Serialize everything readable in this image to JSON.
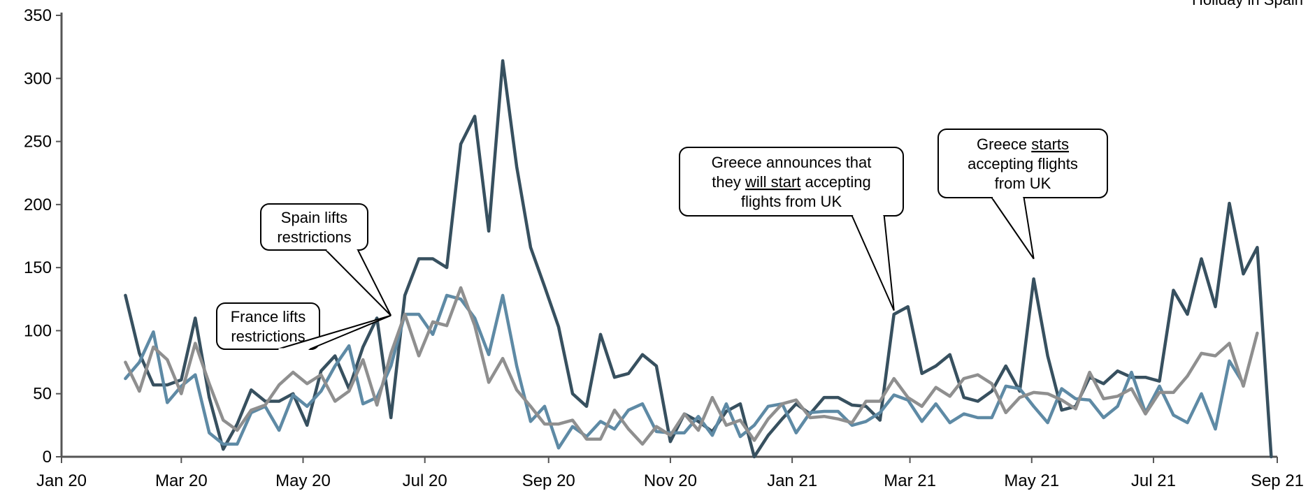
{
  "chart_data": {
    "type": "line",
    "title": "",
    "xlabel": "",
    "ylabel": "",
    "ylim": [
      0,
      350
    ],
    "y_ticks": [
      0,
      50,
      100,
      150,
      200,
      250,
      300,
      350
    ],
    "x_range": [
      "2020-01-01",
      "2021-09-01"
    ],
    "x_ticks": [
      {
        "date": "2020-01-01",
        "label": "Jan 20"
      },
      {
        "date": "2020-03-01",
        "label": "Mar 20"
      },
      {
        "date": "2020-05-01",
        "label": "May 20"
      },
      {
        "date": "2020-07-01",
        "label": "Jul 20"
      },
      {
        "date": "2020-09-01",
        "label": "Sep 20"
      },
      {
        "date": "2020-11-01",
        "label": "Nov 20"
      },
      {
        "date": "2021-01-01",
        "label": "Jan 21"
      },
      {
        "date": "2021-03-01",
        "label": "Mar 21"
      },
      {
        "date": "2021-05-01",
        "label": "May 21"
      },
      {
        "date": "2021-07-01",
        "label": "Jul 21"
      },
      {
        "date": "2021-09-01",
        "label": "Sep 21"
      }
    ],
    "grid": false,
    "legend_position": "top-right",
    "series": [
      {
        "name": "",
        "color": "#37505f",
        "points": [
          [
            "2020-02-02",
            128
          ],
          [
            "2020-02-09",
            82
          ],
          [
            "2020-02-16",
            57
          ],
          [
            "2020-02-23",
            57
          ],
          [
            "2020-03-01",
            61
          ],
          [
            "2020-03-08",
            110
          ],
          [
            "2020-03-15",
            47
          ],
          [
            "2020-03-22",
            6
          ],
          [
            "2020-03-29",
            26
          ],
          [
            "2020-04-05",
            53
          ],
          [
            "2020-04-12",
            44
          ],
          [
            "2020-04-19",
            44
          ],
          [
            "2020-04-26",
            50
          ],
          [
            "2020-05-03",
            25
          ],
          [
            "2020-05-10",
            68
          ],
          [
            "2020-05-17",
            80
          ],
          [
            "2020-05-24",
            54
          ],
          [
            "2020-05-31",
            87
          ],
          [
            "2020-06-07",
            110
          ],
          [
            "2020-06-14",
            31
          ],
          [
            "2020-06-21",
            128
          ],
          [
            "2020-06-28",
            157
          ],
          [
            "2020-07-05",
            157
          ],
          [
            "2020-07-12",
            150
          ],
          [
            "2020-07-19",
            248
          ],
          [
            "2020-07-26",
            270
          ],
          [
            "2020-08-02",
            179
          ],
          [
            "2020-08-09",
            314
          ],
          [
            "2020-08-16",
            230
          ],
          [
            "2020-08-23",
            166
          ],
          [
            "2020-08-30",
            135
          ],
          [
            "2020-09-06",
            103
          ],
          [
            "2020-09-13",
            50
          ],
          [
            "2020-09-20",
            40
          ],
          [
            "2020-09-27",
            97
          ],
          [
            "2020-10-04",
            63
          ],
          [
            "2020-10-11",
            66
          ],
          [
            "2020-10-18",
            81
          ],
          [
            "2020-10-25",
            72
          ],
          [
            "2020-11-01",
            12
          ],
          [
            "2020-11-08",
            34
          ],
          [
            "2020-11-15",
            28
          ],
          [
            "2020-11-22",
            20
          ],
          [
            "2020-11-29",
            36
          ],
          [
            "2020-12-06",
            42
          ],
          [
            "2020-12-13",
            0
          ],
          [
            "2020-12-20",
            17
          ],
          [
            "2020-12-27",
            30
          ],
          [
            "2021-01-03",
            42
          ],
          [
            "2021-01-10",
            34
          ],
          [
            "2021-01-17",
            47
          ],
          [
            "2021-01-24",
            47
          ],
          [
            "2021-01-31",
            41
          ],
          [
            "2021-02-07",
            40
          ],
          [
            "2021-02-14",
            29
          ],
          [
            "2021-02-21",
            113
          ],
          [
            "2021-02-28",
            119
          ],
          [
            "2021-03-07",
            66
          ],
          [
            "2021-03-14",
            72
          ],
          [
            "2021-03-21",
            81
          ],
          [
            "2021-03-28",
            47
          ],
          [
            "2021-04-04",
            44
          ],
          [
            "2021-04-11",
            52
          ],
          [
            "2021-04-18",
            72
          ],
          [
            "2021-04-25",
            52
          ],
          [
            "2021-05-02",
            141
          ],
          [
            "2021-05-09",
            80
          ],
          [
            "2021-05-16",
            37
          ],
          [
            "2021-05-23",
            40
          ],
          [
            "2021-05-30",
            63
          ],
          [
            "2021-06-06",
            58
          ],
          [
            "2021-06-13",
            68
          ],
          [
            "2021-06-20",
            63
          ],
          [
            "2021-06-27",
            63
          ],
          [
            "2021-07-04",
            60
          ],
          [
            "2021-07-11",
            132
          ],
          [
            "2021-07-18",
            113
          ],
          [
            "2021-07-25",
            157
          ],
          [
            "2021-08-01",
            119
          ],
          [
            "2021-08-08",
            201
          ],
          [
            "2021-08-15",
            145
          ],
          [
            "2021-08-22",
            166
          ],
          [
            "2021-08-29",
            0
          ]
        ]
      },
      {
        "name": "",
        "color": "#5e8aa5",
        "points": [
          [
            "2020-02-02",
            62
          ],
          [
            "2020-02-09",
            75
          ],
          [
            "2020-02-16",
            99
          ],
          [
            "2020-02-23",
            43
          ],
          [
            "2020-03-01",
            56
          ],
          [
            "2020-03-08",
            65
          ],
          [
            "2020-03-15",
            19
          ],
          [
            "2020-03-22",
            10
          ],
          [
            "2020-03-29",
            10
          ],
          [
            "2020-04-05",
            35
          ],
          [
            "2020-04-12",
            40
          ],
          [
            "2020-04-19",
            21
          ],
          [
            "2020-04-26",
            49
          ],
          [
            "2020-05-03",
            40
          ],
          [
            "2020-05-10",
            52
          ],
          [
            "2020-05-17",
            72
          ],
          [
            "2020-05-24",
            88
          ],
          [
            "2020-05-31",
            42
          ],
          [
            "2020-06-07",
            47
          ],
          [
            "2020-06-14",
            72
          ],
          [
            "2020-06-21",
            113
          ],
          [
            "2020-06-28",
            113
          ],
          [
            "2020-07-05",
            97
          ],
          [
            "2020-07-12",
            128
          ],
          [
            "2020-07-19",
            125
          ],
          [
            "2020-07-26",
            110
          ],
          [
            "2020-08-02",
            81
          ],
          [
            "2020-08-09",
            128
          ],
          [
            "2020-08-16",
            72
          ],
          [
            "2020-08-23",
            28
          ],
          [
            "2020-08-30",
            40
          ],
          [
            "2020-09-06",
            7
          ],
          [
            "2020-09-13",
            24
          ],
          [
            "2020-09-20",
            16
          ],
          [
            "2020-09-27",
            28
          ],
          [
            "2020-10-04",
            22
          ],
          [
            "2020-10-11",
            37
          ],
          [
            "2020-10-18",
            42
          ],
          [
            "2020-10-25",
            20
          ],
          [
            "2020-11-01",
            19
          ],
          [
            "2020-11-08",
            19
          ],
          [
            "2020-11-15",
            32
          ],
          [
            "2020-11-22",
            17
          ],
          [
            "2020-11-29",
            42
          ],
          [
            "2020-12-06",
            16
          ],
          [
            "2020-12-13",
            25
          ],
          [
            "2020-12-20",
            40
          ],
          [
            "2020-12-27",
            42
          ],
          [
            "2021-01-03",
            19
          ],
          [
            "2021-01-10",
            35
          ],
          [
            "2021-01-17",
            36
          ],
          [
            "2021-01-24",
            36
          ],
          [
            "2021-01-31",
            25
          ],
          [
            "2021-02-07",
            28
          ],
          [
            "2021-02-14",
            35
          ],
          [
            "2021-02-21",
            49
          ],
          [
            "2021-02-28",
            45
          ],
          [
            "2021-03-07",
            28
          ],
          [
            "2021-03-14",
            42
          ],
          [
            "2021-03-21",
            27
          ],
          [
            "2021-03-28",
            34
          ],
          [
            "2021-04-04",
            31
          ],
          [
            "2021-04-11",
            31
          ],
          [
            "2021-04-18",
            56
          ],
          [
            "2021-04-25",
            54
          ],
          [
            "2021-05-02",
            40
          ],
          [
            "2021-05-09",
            27
          ],
          [
            "2021-05-16",
            54
          ],
          [
            "2021-05-23",
            46
          ],
          [
            "2021-05-30",
            45
          ],
          [
            "2021-06-06",
            31
          ],
          [
            "2021-06-13",
            40
          ],
          [
            "2021-06-20",
            67
          ],
          [
            "2021-06-27",
            35
          ],
          [
            "2021-07-04",
            56
          ],
          [
            "2021-07-11",
            33
          ],
          [
            "2021-07-18",
            27
          ],
          [
            "2021-07-25",
            50
          ],
          [
            "2021-08-01",
            22
          ],
          [
            "2021-08-08",
            76
          ],
          [
            "2021-08-15",
            58
          ]
        ]
      },
      {
        "name": "Holiday in Spain",
        "color": "#8f8f8f",
        "points": [
          [
            "2020-02-02",
            75
          ],
          [
            "2020-02-09",
            52
          ],
          [
            "2020-02-16",
            87
          ],
          [
            "2020-02-23",
            77
          ],
          [
            "2020-03-01",
            50
          ],
          [
            "2020-03-08",
            90
          ],
          [
            "2020-03-15",
            58
          ],
          [
            "2020-03-22",
            29
          ],
          [
            "2020-03-29",
            21
          ],
          [
            "2020-04-05",
            37
          ],
          [
            "2020-04-12",
            41
          ],
          [
            "2020-04-19",
            57
          ],
          [
            "2020-04-26",
            67
          ],
          [
            "2020-05-03",
            58
          ],
          [
            "2020-05-10",
            65
          ],
          [
            "2020-05-17",
            44
          ],
          [
            "2020-05-24",
            52
          ],
          [
            "2020-05-31",
            77
          ],
          [
            "2020-06-07",
            41
          ],
          [
            "2020-06-14",
            82
          ],
          [
            "2020-06-21",
            113
          ],
          [
            "2020-06-28",
            80
          ],
          [
            "2020-07-05",
            107
          ],
          [
            "2020-07-12",
            104
          ],
          [
            "2020-07-19",
            134
          ],
          [
            "2020-07-26",
            104
          ],
          [
            "2020-08-02",
            59
          ],
          [
            "2020-08-09",
            78
          ],
          [
            "2020-08-16",
            53
          ],
          [
            "2020-08-23",
            40
          ],
          [
            "2020-08-30",
            26
          ],
          [
            "2020-09-06",
            26
          ],
          [
            "2020-09-13",
            29
          ],
          [
            "2020-09-20",
            14
          ],
          [
            "2020-09-27",
            14
          ],
          [
            "2020-10-04",
            37
          ],
          [
            "2020-10-11",
            22
          ],
          [
            "2020-10-18",
            10
          ],
          [
            "2020-10-25",
            24
          ],
          [
            "2020-11-01",
            17
          ],
          [
            "2020-11-08",
            34
          ],
          [
            "2020-11-15",
            21
          ],
          [
            "2020-11-22",
            47
          ],
          [
            "2020-11-29",
            25
          ],
          [
            "2020-12-06",
            29
          ],
          [
            "2020-12-13",
            13
          ],
          [
            "2020-12-20",
            30
          ],
          [
            "2020-12-27",
            42
          ],
          [
            "2021-01-03",
            45
          ],
          [
            "2021-01-10",
            31
          ],
          [
            "2021-01-17",
            32
          ],
          [
            "2021-01-24",
            30
          ],
          [
            "2021-01-31",
            27
          ],
          [
            "2021-02-07",
            44
          ],
          [
            "2021-02-14",
            44
          ],
          [
            "2021-02-21",
            62
          ],
          [
            "2021-02-28",
            47
          ],
          [
            "2021-03-07",
            40
          ],
          [
            "2021-03-14",
            55
          ],
          [
            "2021-03-21",
            48
          ],
          [
            "2021-03-28",
            62
          ],
          [
            "2021-04-04",
            65
          ],
          [
            "2021-04-11",
            58
          ],
          [
            "2021-04-18",
            35
          ],
          [
            "2021-04-25",
            47
          ],
          [
            "2021-05-02",
            51
          ],
          [
            "2021-05-09",
            50
          ],
          [
            "2021-05-16",
            45
          ],
          [
            "2021-05-23",
            38
          ],
          [
            "2021-05-30",
            67
          ],
          [
            "2021-06-06",
            46
          ],
          [
            "2021-06-13",
            48
          ],
          [
            "2021-06-20",
            54
          ],
          [
            "2021-06-27",
            34
          ],
          [
            "2021-07-04",
            51
          ],
          [
            "2021-07-11",
            51
          ],
          [
            "2021-07-18",
            64
          ],
          [
            "2021-07-25",
            82
          ],
          [
            "2021-08-01",
            80
          ],
          [
            "2021-08-08",
            90
          ],
          [
            "2021-08-15",
            56
          ],
          [
            "2021-08-22",
            98
          ]
        ]
      }
    ],
    "annotations": [
      {
        "lines": [
          "France lifts",
          "restrictions"
        ],
        "target": [
          "2020-06-14",
          112
        ]
      },
      {
        "lines": [
          "Spain lifts",
          "restrictions"
        ],
        "target": [
          "2020-06-14",
          112
        ]
      },
      {
        "lines": [
          "Greece announces that",
          "they will start accepting",
          "flights from UK"
        ],
        "underline": "will start",
        "target": [
          "2021-02-21",
          116
        ]
      },
      {
        "lines": [
          "Greece starts",
          "accepting flights",
          "from UK"
        ],
        "underline": "starts",
        "target": [
          "2021-05-02",
          157
        ]
      }
    ]
  }
}
